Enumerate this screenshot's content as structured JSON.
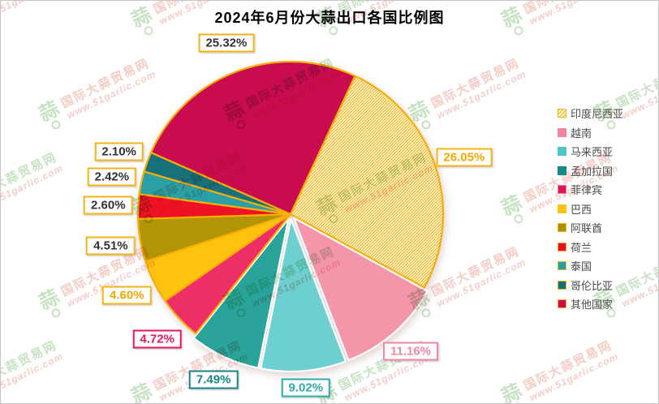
{
  "title": {
    "text": "2024年6月份大蒜出口各国比例图"
  },
  "watermark": {
    "logo_glyph": "蒜",
    "line1": "国际大蒜贸易网",
    "line2": "www.51garlic.com",
    "green": "#c7e2c3",
    "pink": "#f4cdc6"
  },
  "legend": {
    "text_color": "#4a4a4a",
    "gold_border": "#f5b31b"
  },
  "chart_data": {
    "type": "pie",
    "title": "2024年6月份大蒜出口各国比例图",
    "unit": "%",
    "start_angle_deg": 65,
    "direction": "clockwise",
    "legend_position": "right",
    "slice_stroke": "#f7ae08",
    "hatch_stripe": "#f5b413",
    "series": [
      {
        "name": "印度尼西亚",
        "value": 26.05,
        "label": "26.05%",
        "legend_color": "#fbbe0c",
        "slice_color": "hatch",
        "hatch": true,
        "label_text": "#f0a800",
        "label_border": "#f5b31b",
        "legend_border": "#f5b31b",
        "exploded": false
      },
      {
        "name": "越南",
        "value": 11.16,
        "label": "11.16%",
        "legend_color": "#f2849c",
        "slice_color": "#f495aa",
        "label_text": "#f287a2",
        "label_border": "#f287a2",
        "legend_border": "#f2849c",
        "exploded": true
      },
      {
        "name": "马来西亚",
        "value": 9.02,
        "label": "9.02%",
        "legend_color": "#4fc3c5",
        "slice_color": "#6dcfcf",
        "label_text": "#2fa9ae",
        "label_border": "#2fa9ae",
        "legend_border": "#4fc3c5",
        "exploded": true
      },
      {
        "name": "孟加拉国",
        "value": 7.49,
        "label": "7.49%",
        "legend_color": "#17898d",
        "slice_color": "#2aa39b",
        "label_text": "#1a8286",
        "label_border": "#1a8286",
        "legend_border": "#17898d",
        "exploded": true
      },
      {
        "name": "菲律宾",
        "value": 4.72,
        "label": "4.72%",
        "legend_color": "#e2164f",
        "slice_color": "#ee2e66",
        "label_text": "#e8175b",
        "label_border": "#e8175b",
        "legend_border": "#ef7fa0",
        "exploded": false
      },
      {
        "name": "巴西",
        "value": 4.6,
        "label": "4.60%",
        "legend_color": "#ffc20e",
        "slice_color": "#ffc20e",
        "label_text": "#f0a800",
        "label_border": "#f5b31b",
        "legend_border": "#ffc20e",
        "exploded": false
      },
      {
        "name": "阿联酋",
        "value": 4.51,
        "label": "4.51%",
        "legend_color": "#ad9000",
        "slice_color": "#b29404",
        "label_text": "#333333",
        "label_border": "#f5b31b",
        "legend_border": "#f5b31b",
        "exploded": false
      },
      {
        "name": "荷兰",
        "value": 2.6,
        "label": "2.60%",
        "legend_color": "#e8112d",
        "slice_color": "#ee1224",
        "label_text": "#333333",
        "label_border": "#f5b31b",
        "legend_border": "#f5b31b",
        "exploded": false
      },
      {
        "name": "泰国",
        "value": 2.42,
        "label": "2.42%",
        "legend_color": "#23a0a5",
        "slice_color": "#2aa0a6",
        "label_text": "#333333",
        "label_border": "#f5b31b",
        "legend_border": "#f5b31b",
        "exploded": false
      },
      {
        "name": "哥伦比亚",
        "value": 2.1,
        "label": "2.10%",
        "legend_color": "#127078",
        "slice_color": "#17707a",
        "label_text": "#333333",
        "label_border": "#f5b31b",
        "legend_border": "#f5b31b",
        "exploded": false
      },
      {
        "name": "其他国家",
        "value": 25.32,
        "label": "25.32%",
        "legend_color": "#cb0a50",
        "slice_color": "#c90c4f",
        "label_text": "#333333",
        "label_border": "#f5b31b",
        "legend_border": "#f5b31b",
        "exploded": false
      }
    ]
  }
}
